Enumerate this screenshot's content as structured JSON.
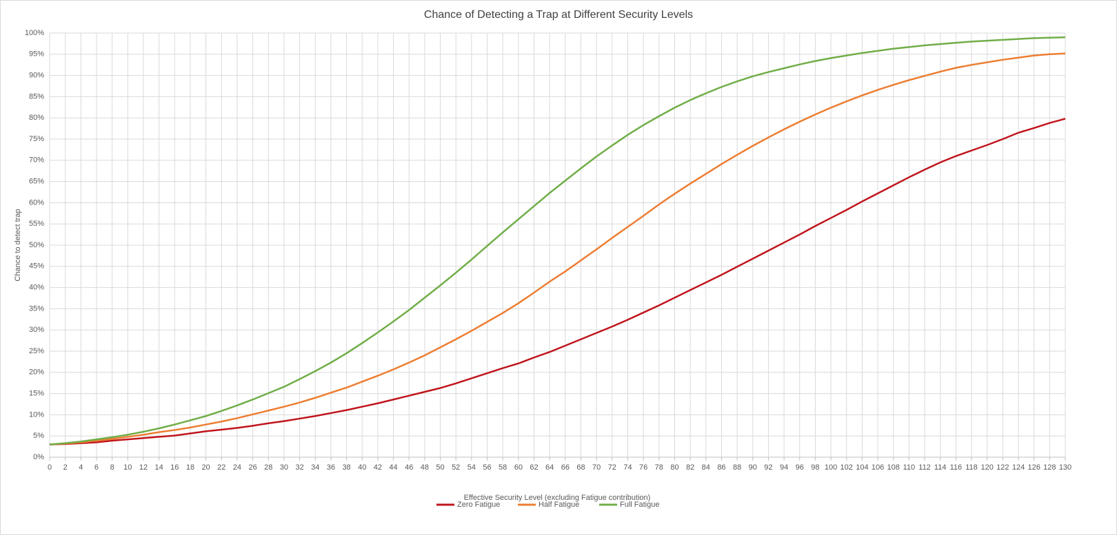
{
  "chart_data": {
    "type": "line",
    "title": "Chance of Detecting a Trap at Different Security Levels",
    "x_label": "Effective Security Level  (excluding Fatigue contribution)",
    "y_label": "Chance to detect trap",
    "x": [
      0,
      2,
      4,
      6,
      8,
      10,
      12,
      14,
      16,
      18,
      20,
      22,
      24,
      26,
      28,
      30,
      32,
      34,
      36,
      38,
      40,
      42,
      44,
      46,
      48,
      50,
      52,
      54,
      56,
      58,
      60,
      62,
      64,
      66,
      68,
      70,
      72,
      74,
      76,
      78,
      80,
      82,
      84,
      86,
      88,
      90,
      92,
      94,
      96,
      98,
      100,
      102,
      104,
      106,
      108,
      110,
      112,
      114,
      116,
      118,
      120,
      122,
      124,
      126,
      128,
      130
    ],
    "series": [
      {
        "name": "Zero Fatigue",
        "color": "#c0141c",
        "values": [
          3,
          3.1,
          3.3,
          3.5,
          3.9,
          4.2,
          4.5,
          4.8,
          5.1,
          5.6,
          6.1,
          6.5,
          6.9,
          7.4,
          8.0,
          8.5,
          9.1,
          9.7,
          10.4,
          11.1,
          11.9,
          12.7,
          13.6,
          14.5,
          15.4,
          16.3,
          17.4,
          18.6,
          19.8,
          21.0,
          22.1,
          23.5,
          24.8,
          26.3,
          27.8,
          29.3,
          30.8,
          32.4,
          34.1,
          35.8,
          37.6,
          39.4,
          41.2,
          43.0,
          44.9,
          46.8,
          48.7,
          50.6,
          52.5,
          54.5,
          56.4,
          58.3,
          60.3,
          62.2,
          64.1,
          66.0,
          67.8,
          69.5,
          71.0,
          72.3,
          73.6,
          75.0,
          76.5,
          77.6,
          78.8,
          79.8
        ]
      },
      {
        "name": "Half Fatigue",
        "color": "#ed7d31",
        "values": [
          3,
          3.2,
          3.5,
          3.9,
          4.3,
          4.8,
          5.3,
          5.9,
          6.4,
          7.0,
          7.7,
          8.4,
          9.2,
          10.1,
          11.0,
          11.9,
          12.9,
          14.0,
          15.2,
          16.4,
          17.8,
          19.2,
          20.7,
          22.3,
          24.0,
          25.9,
          27.8,
          29.8,
          31.9,
          34.0,
          36.3,
          38.8,
          41.4,
          43.8,
          46.4,
          49.0,
          51.7,
          54.3,
          56.9,
          59.6,
          62.1,
          64.5,
          66.8,
          69.1,
          71.3,
          73.4,
          75.4,
          77.3,
          79.1,
          80.8,
          82.4,
          83.9,
          85.3,
          86.6,
          87.8,
          88.9,
          89.9,
          90.9,
          91.8,
          92.5,
          93.1,
          93.7,
          94.2,
          94.7,
          95.0,
          95.2
        ]
      },
      {
        "name": "Full Fatigue",
        "color": "#70ad47",
        "values": [
          3,
          3.3,
          3.7,
          4.2,
          4.7,
          5.3,
          6.0,
          6.8,
          7.7,
          8.7,
          9.7,
          10.9,
          12.2,
          13.6,
          15.1,
          16.6,
          18.4,
          20.3,
          22.3,
          24.5,
          26.9,
          29.4,
          32.0,
          34.7,
          37.6,
          40.5,
          43.5,
          46.6,
          49.8,
          53.0,
          56.1,
          59.2,
          62.3,
          65.2,
          68.1,
          70.9,
          73.5,
          76.0,
          78.3,
          80.4,
          82.4,
          84.2,
          85.8,
          87.3,
          88.6,
          89.8,
          90.8,
          91.7,
          92.6,
          93.4,
          94.1,
          94.7,
          95.3,
          95.8,
          96.3,
          96.7,
          97.1,
          97.4,
          97.7,
          98.0,
          98.2,
          98.4,
          98.6,
          98.8,
          98.9,
          99.0
        ]
      }
    ],
    "xlim": [
      0,
      130
    ],
    "xticks": [
      0,
      2,
      4,
      6,
      8,
      10,
      12,
      14,
      16,
      18,
      20,
      22,
      24,
      26,
      28,
      30,
      32,
      34,
      36,
      38,
      40,
      42,
      44,
      46,
      48,
      50,
      52,
      54,
      56,
      58,
      60,
      62,
      64,
      66,
      68,
      70,
      72,
      74,
      76,
      78,
      80,
      82,
      84,
      86,
      88,
      90,
      92,
      94,
      96,
      98,
      100,
      102,
      104,
      106,
      108,
      110,
      112,
      114,
      116,
      118,
      120,
      122,
      124,
      126,
      128,
      130
    ],
    "ylim": [
      0,
      100
    ],
    "yticks": [
      {
        "value": 0,
        "label": "0%"
      },
      {
        "value": 5,
        "label": "5%"
      },
      {
        "value": 10,
        "label": "10%"
      },
      {
        "value": 15,
        "label": "15%"
      },
      {
        "value": 20,
        "label": "20%"
      },
      {
        "value": 25,
        "label": "25%"
      },
      {
        "value": 30,
        "label": "30%"
      },
      {
        "value": 35,
        "label": "35%"
      },
      {
        "value": 40,
        "label": "40%"
      },
      {
        "value": 45,
        "label": "45%"
      },
      {
        "value": 50,
        "label": "50%"
      },
      {
        "value": 55,
        "label": "55%"
      },
      {
        "value": 60,
        "label": "60%"
      },
      {
        "value": 65,
        "label": "65%"
      },
      {
        "value": 70,
        "label": "70%"
      },
      {
        "value": 75,
        "label": "75%"
      },
      {
        "value": 80,
        "label": "80%"
      },
      {
        "value": 85,
        "label": "85%"
      },
      {
        "value": 90,
        "label": "90%"
      },
      {
        "value": 95,
        "label": "95%"
      },
      {
        "value": 100,
        "label": "100%"
      }
    ],
    "grid": true,
    "legend": "bottom"
  }
}
